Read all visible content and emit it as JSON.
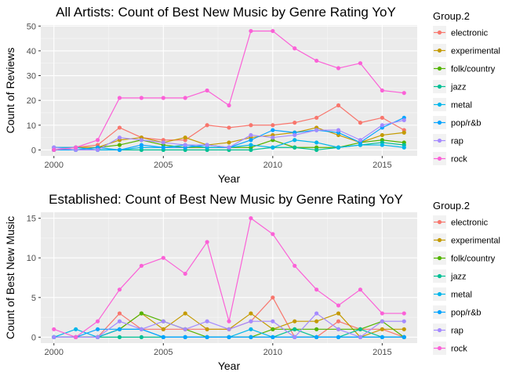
{
  "chart_data": [
    {
      "type": "line",
      "title": "All Artists: Count of Best New Music by Genre Rating YoY",
      "xlabel": "Year",
      "ylabel": "Count of Reviews",
      "xlim": [
        1999.4,
        2016.6
      ],
      "ylim": [
        -2.4,
        50.4
      ],
      "xticks": [
        2000,
        2005,
        2010,
        2015
      ],
      "yticks": [
        0,
        10,
        20,
        30,
        40,
        50
      ],
      "grid": true,
      "legend": {
        "title": "Group.2",
        "placement": "right"
      },
      "x": [
        2000,
        2001,
        2002,
        2003,
        2004,
        2005,
        2006,
        2007,
        2008,
        2009,
        2010,
        2011,
        2012,
        2013,
        2014,
        2015,
        2016
      ],
      "series": [
        {
          "name": "electronic",
          "color": "#F8766D",
          "values": [
            1,
            1,
            2,
            9,
            5,
            4,
            4,
            10,
            9,
            10,
            10,
            11,
            13,
            18,
            11,
            13,
            8
          ]
        },
        {
          "name": "experimental",
          "color": "#C49A00",
          "values": [
            0,
            1,
            1,
            4,
            5,
            3,
            5,
            2,
            3,
            5,
            6,
            7,
            9,
            6,
            3,
            6,
            7
          ]
        },
        {
          "name": "folk/country",
          "color": "#53B400",
          "values": [
            0,
            0,
            1,
            2,
            4,
            2,
            1,
            1,
            1,
            1,
            4,
            1,
            1,
            1,
            3,
            4,
            3
          ]
        },
        {
          "name": "jazz",
          "color": "#00C094",
          "values": [
            0,
            0,
            0,
            0,
            0,
            0,
            0,
            0,
            0,
            0,
            1,
            1,
            0,
            1,
            2,
            3,
            2
          ]
        },
        {
          "name": "metal",
          "color": "#00B6EB",
          "values": [
            1,
            1,
            0,
            0,
            1,
            1,
            2,
            1,
            1,
            2,
            1,
            4,
            3,
            1,
            2,
            2,
            1
          ]
        },
        {
          "name": "pop/r&b",
          "color": "#06A4FF",
          "values": [
            0,
            0,
            1,
            0,
            2,
            1,
            1,
            2,
            1,
            4,
            8,
            7,
            8,
            7,
            3,
            9,
            13
          ]
        },
        {
          "name": "rap",
          "color": "#A58AFF",
          "values": [
            1,
            0,
            0,
            5,
            4,
            3,
            2,
            2,
            1,
            6,
            5,
            6,
            8,
            8,
            4,
            10,
            12
          ]
        },
        {
          "name": "rock",
          "color": "#FB61D7",
          "values": [
            0,
            1,
            4,
            21,
            21,
            21,
            21,
            24,
            18,
            48,
            48,
            41,
            36,
            33,
            35,
            24,
            23
          ]
        }
      ]
    },
    {
      "type": "line",
      "title": "Established: Count of Best New Music by Genre Rating YoY",
      "xlabel": "Year",
      "ylabel": "Count of Best New Music",
      "xlim": [
        1999.4,
        2016.6
      ],
      "ylim": [
        -0.75,
        15.75
      ],
      "xticks": [
        2000,
        2005,
        2010,
        2015
      ],
      "yticks": [
        0,
        5,
        10,
        15
      ],
      "grid": true,
      "legend": {
        "title": "Group.2",
        "placement": "right"
      },
      "x": [
        2000,
        2001,
        2002,
        2003,
        2004,
        2005,
        2006,
        2007,
        2008,
        2009,
        2010,
        2011,
        2012,
        2013,
        2014,
        2015,
        2016
      ],
      "series": [
        {
          "name": "electronic",
          "color": "#F8766D",
          "values": [
            0,
            0,
            0,
            3,
            1,
            1,
            1,
            1,
            1,
            2,
            5,
            0,
            0,
            2,
            1,
            1,
            0
          ]
        },
        {
          "name": "experimental",
          "color": "#C49A00",
          "values": [
            0,
            0,
            0,
            1,
            3,
            1,
            3,
            1,
            1,
            3,
            1,
            2,
            2,
            3,
            0,
            1,
            1
          ]
        },
        {
          "name": "folk/country",
          "color": "#53B400",
          "values": [
            0,
            0,
            0,
            1,
            3,
            2,
            1,
            0,
            0,
            0,
            1,
            1,
            1,
            1,
            1,
            2,
            0
          ]
        },
        {
          "name": "jazz",
          "color": "#00C094",
          "values": [
            0,
            0,
            0,
            0,
            0,
            0,
            0,
            0,
            0,
            0,
            0,
            1,
            0,
            0,
            1,
            0,
            0
          ]
        },
        {
          "name": "metal",
          "color": "#00B6EB",
          "values": [
            0,
            1,
            0,
            1,
            1,
            0,
            0,
            0,
            0,
            1,
            0,
            0,
            0,
            0,
            0,
            0,
            0
          ]
        },
        {
          "name": "pop/r&b",
          "color": "#06A4FF",
          "values": [
            0,
            0,
            1,
            1,
            1,
            0,
            0,
            0,
            0,
            0,
            0,
            0,
            0,
            0,
            0,
            0,
            0
          ]
        },
        {
          "name": "rap",
          "color": "#A58AFF",
          "values": [
            0,
            0,
            0,
            2,
            1,
            2,
            1,
            2,
            1,
            2,
            2,
            0,
            3,
            1,
            0,
            2,
            2
          ]
        },
        {
          "name": "rock",
          "color": "#FB61D7",
          "values": [
            1,
            0,
            2,
            6,
            9,
            10,
            8,
            12,
            2,
            15,
            13,
            9,
            6,
            4,
            6,
            3,
            3
          ]
        }
      ]
    }
  ]
}
